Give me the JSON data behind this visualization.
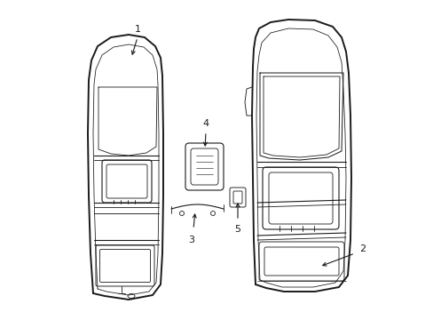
{
  "bg_color": "#ffffff",
  "line_color": "#1a1a1a",
  "lw_outer": 1.4,
  "lw_inner": 0.8,
  "lw_detail": 0.6,
  "fig_w": 4.89,
  "fig_h": 3.6,
  "dpi": 100
}
